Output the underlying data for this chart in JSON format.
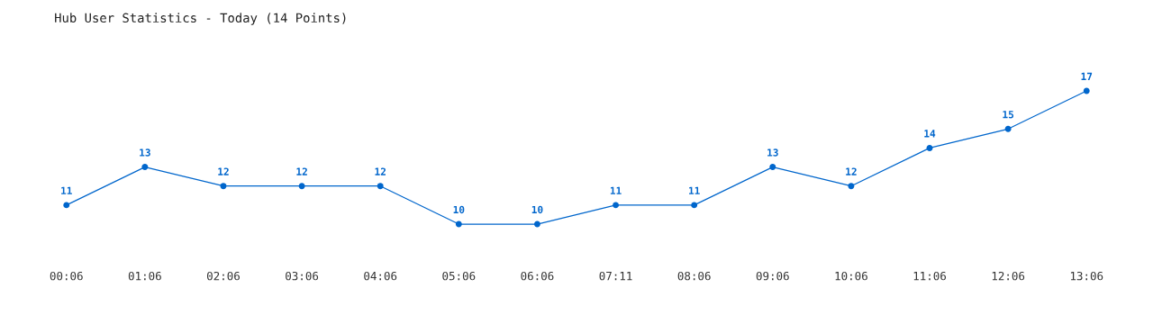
{
  "chart_data": {
    "type": "line",
    "title": "Hub User Statistics - Today (14 Points)",
    "categories": [
      "00:06",
      "01:06",
      "02:06",
      "03:06",
      "04:06",
      "05:06",
      "06:06",
      "07:11",
      "08:06",
      "09:06",
      "10:06",
      "11:06",
      "12:06",
      "13:06"
    ],
    "series": [
      {
        "color": "#0066cc",
        "values": [
          11,
          13,
          12,
          12,
          12,
          10,
          10,
          11,
          11,
          13,
          12,
          14,
          15,
          17
        ]
      }
    ],
    "data_labels": true,
    "marker": "circle",
    "line_style": "solid",
    "grid": false,
    "legend": false
  }
}
